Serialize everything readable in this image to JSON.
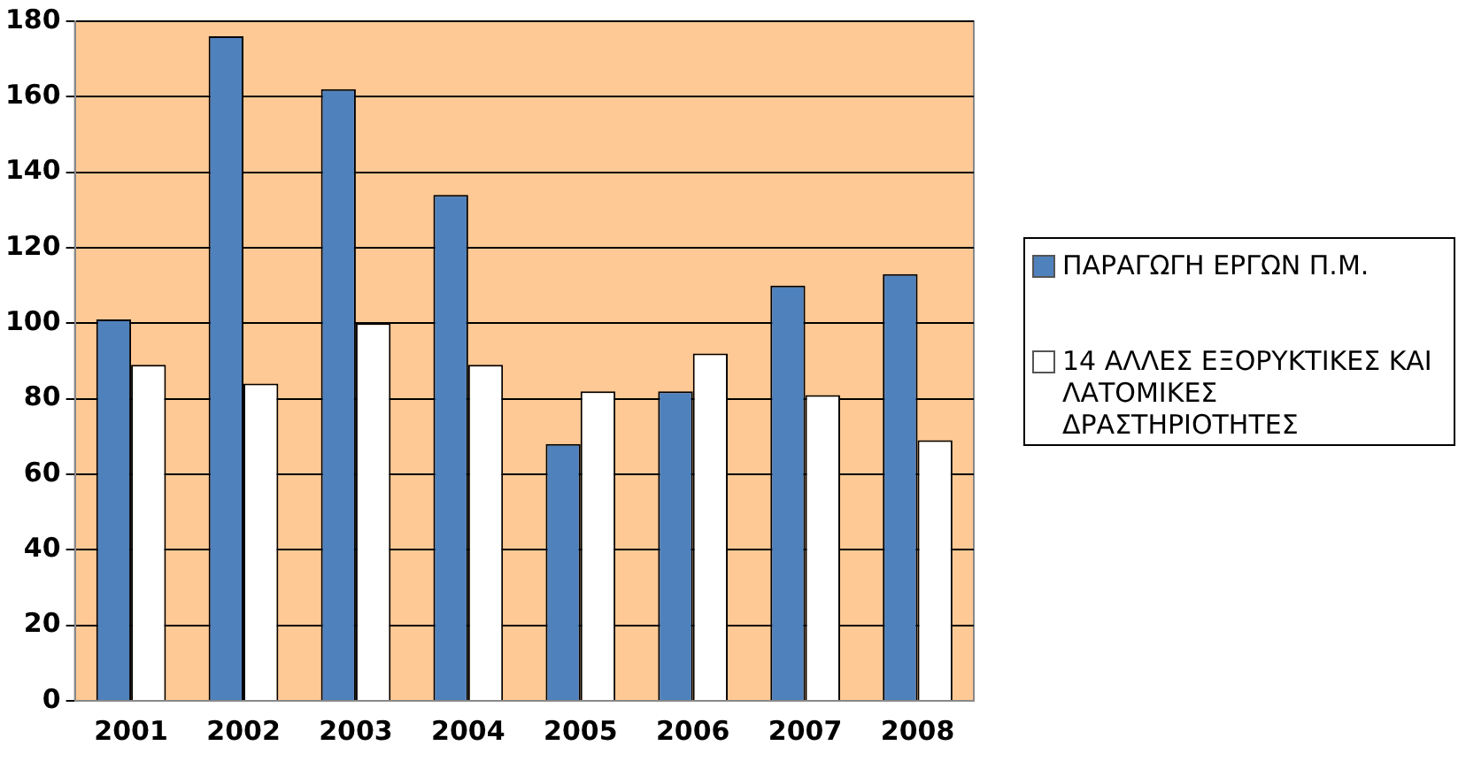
{
  "chart_data": {
    "type": "bar",
    "categories": [
      "2001",
      "2002",
      "2003",
      "2004",
      "2005",
      "2006",
      "2007",
      "2008"
    ],
    "series": [
      {
        "name": "ΠΑΡΑΓΩΓΗ ΕΡΓΩΝ Π.Μ.",
        "color": "#4f81bd",
        "values": [
          101,
          176,
          162,
          134,
          68,
          82,
          110,
          113
        ]
      },
      {
        "name": "14  ΑΛΛΕΣ ΕΞΟΡΥΚΤΙΚΕΣ ΚΑΙ ΛΑΤΟΜΙΚΕΣ ΔΡΑΣΤΗΡΙΟΤΗΤΕΣ",
        "color": "#ffffff",
        "values": [
          89,
          84,
          100,
          89,
          82,
          92,
          81,
          69
        ]
      }
    ],
    "ylim": [
      0,
      180
    ],
    "yticks": [
      0,
      20,
      40,
      60,
      80,
      100,
      120,
      140,
      160,
      180
    ],
    "grid": "y",
    "legend": "right"
  }
}
